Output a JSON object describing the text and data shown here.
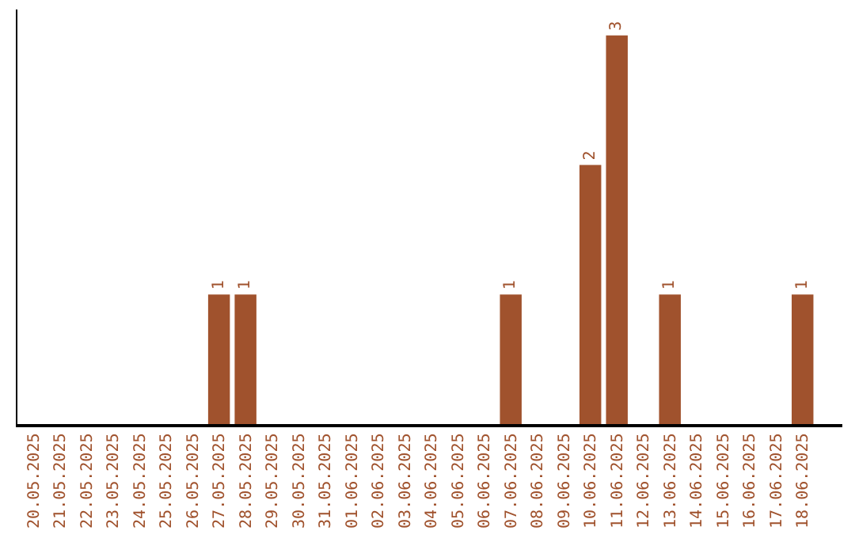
{
  "chart_data": {
    "type": "bar",
    "categories": [
      "20.05.2025",
      "21.05.2025",
      "22.05.2025",
      "23.05.2025",
      "24.05.2025",
      "25.05.2025",
      "26.05.2025",
      "27.05.2025",
      "28.05.2025",
      "29.05.2025",
      "30.05.2025",
      "31.05.2025",
      "01.06.2025",
      "02.06.2025",
      "03.06.2025",
      "04.06.2025",
      "05.06.2025",
      "06.06.2025",
      "07.06.2025",
      "08.06.2025",
      "09.06.2025",
      "10.06.2025",
      "11.06.2025",
      "12.06.2025",
      "13.06.2025",
      "14.06.2025",
      "15.06.2025",
      "16.06.2025",
      "17.06.2025",
      "18.06.2025"
    ],
    "values": [
      0,
      0,
      0,
      0,
      0,
      0,
      0,
      1,
      1,
      0,
      0,
      0,
      0,
      0,
      0,
      0,
      0,
      0,
      1,
      0,
      0,
      2,
      3,
      0,
      1,
      0,
      0,
      0,
      0,
      1
    ],
    "value_labels": [
      null,
      null,
      null,
      null,
      null,
      null,
      null,
      "1",
      "1",
      null,
      null,
      null,
      null,
      null,
      null,
      null,
      null,
      null,
      "1",
      null,
      null,
      "2",
      "3",
      null,
      "1",
      null,
      null,
      null,
      null,
      "1"
    ],
    "color": "#a0522d",
    "ylim": [
      0,
      3.2
    ],
    "tick_labels": "x"
  }
}
